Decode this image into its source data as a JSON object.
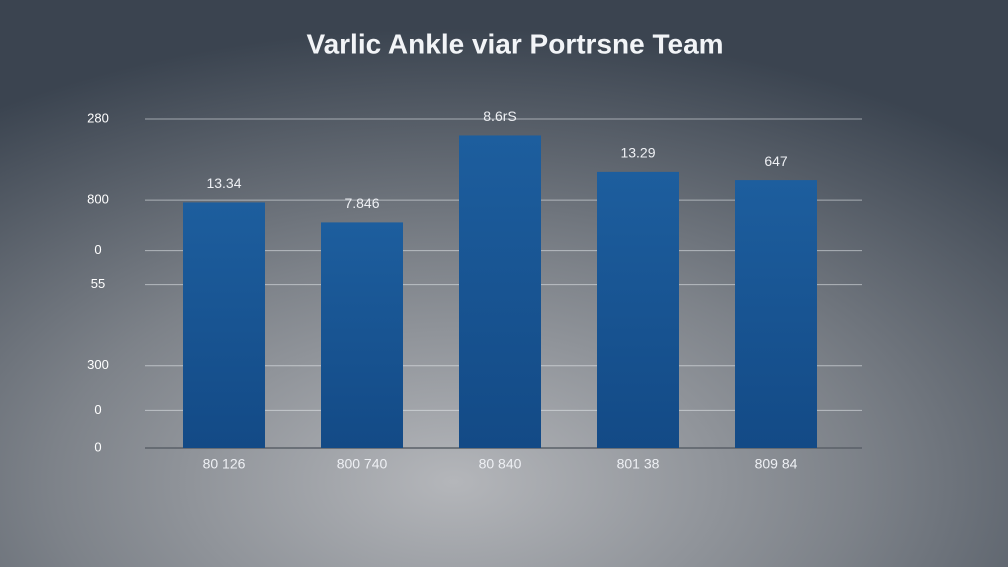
{
  "chart_data": {
    "type": "bar",
    "title": "Varlic Ankle viar Portrsne  Team",
    "categories": [
      "80 126",
      "800 740",
      "80 840",
      "801 38",
      "809 84"
    ],
    "values": [
      209,
      192,
      266,
      235,
      228
    ],
    "annotations": [
      "13.34",
      "7.846",
      "8.6rS",
      "13.29",
      "647"
    ],
    "color": "#1a5896",
    "ylim": [
      0,
      280
    ],
    "yticks": [
      {
        "value": 0,
        "label": "0"
      },
      {
        "value": 32,
        "label": "0"
      },
      {
        "value": 70,
        "label": "300"
      },
      {
        "value": 139,
        "label": "55"
      },
      {
        "value": 168,
        "label": "0"
      },
      {
        "value": 211,
        "label": "800"
      },
      280
    ],
    "grid": true
  }
}
